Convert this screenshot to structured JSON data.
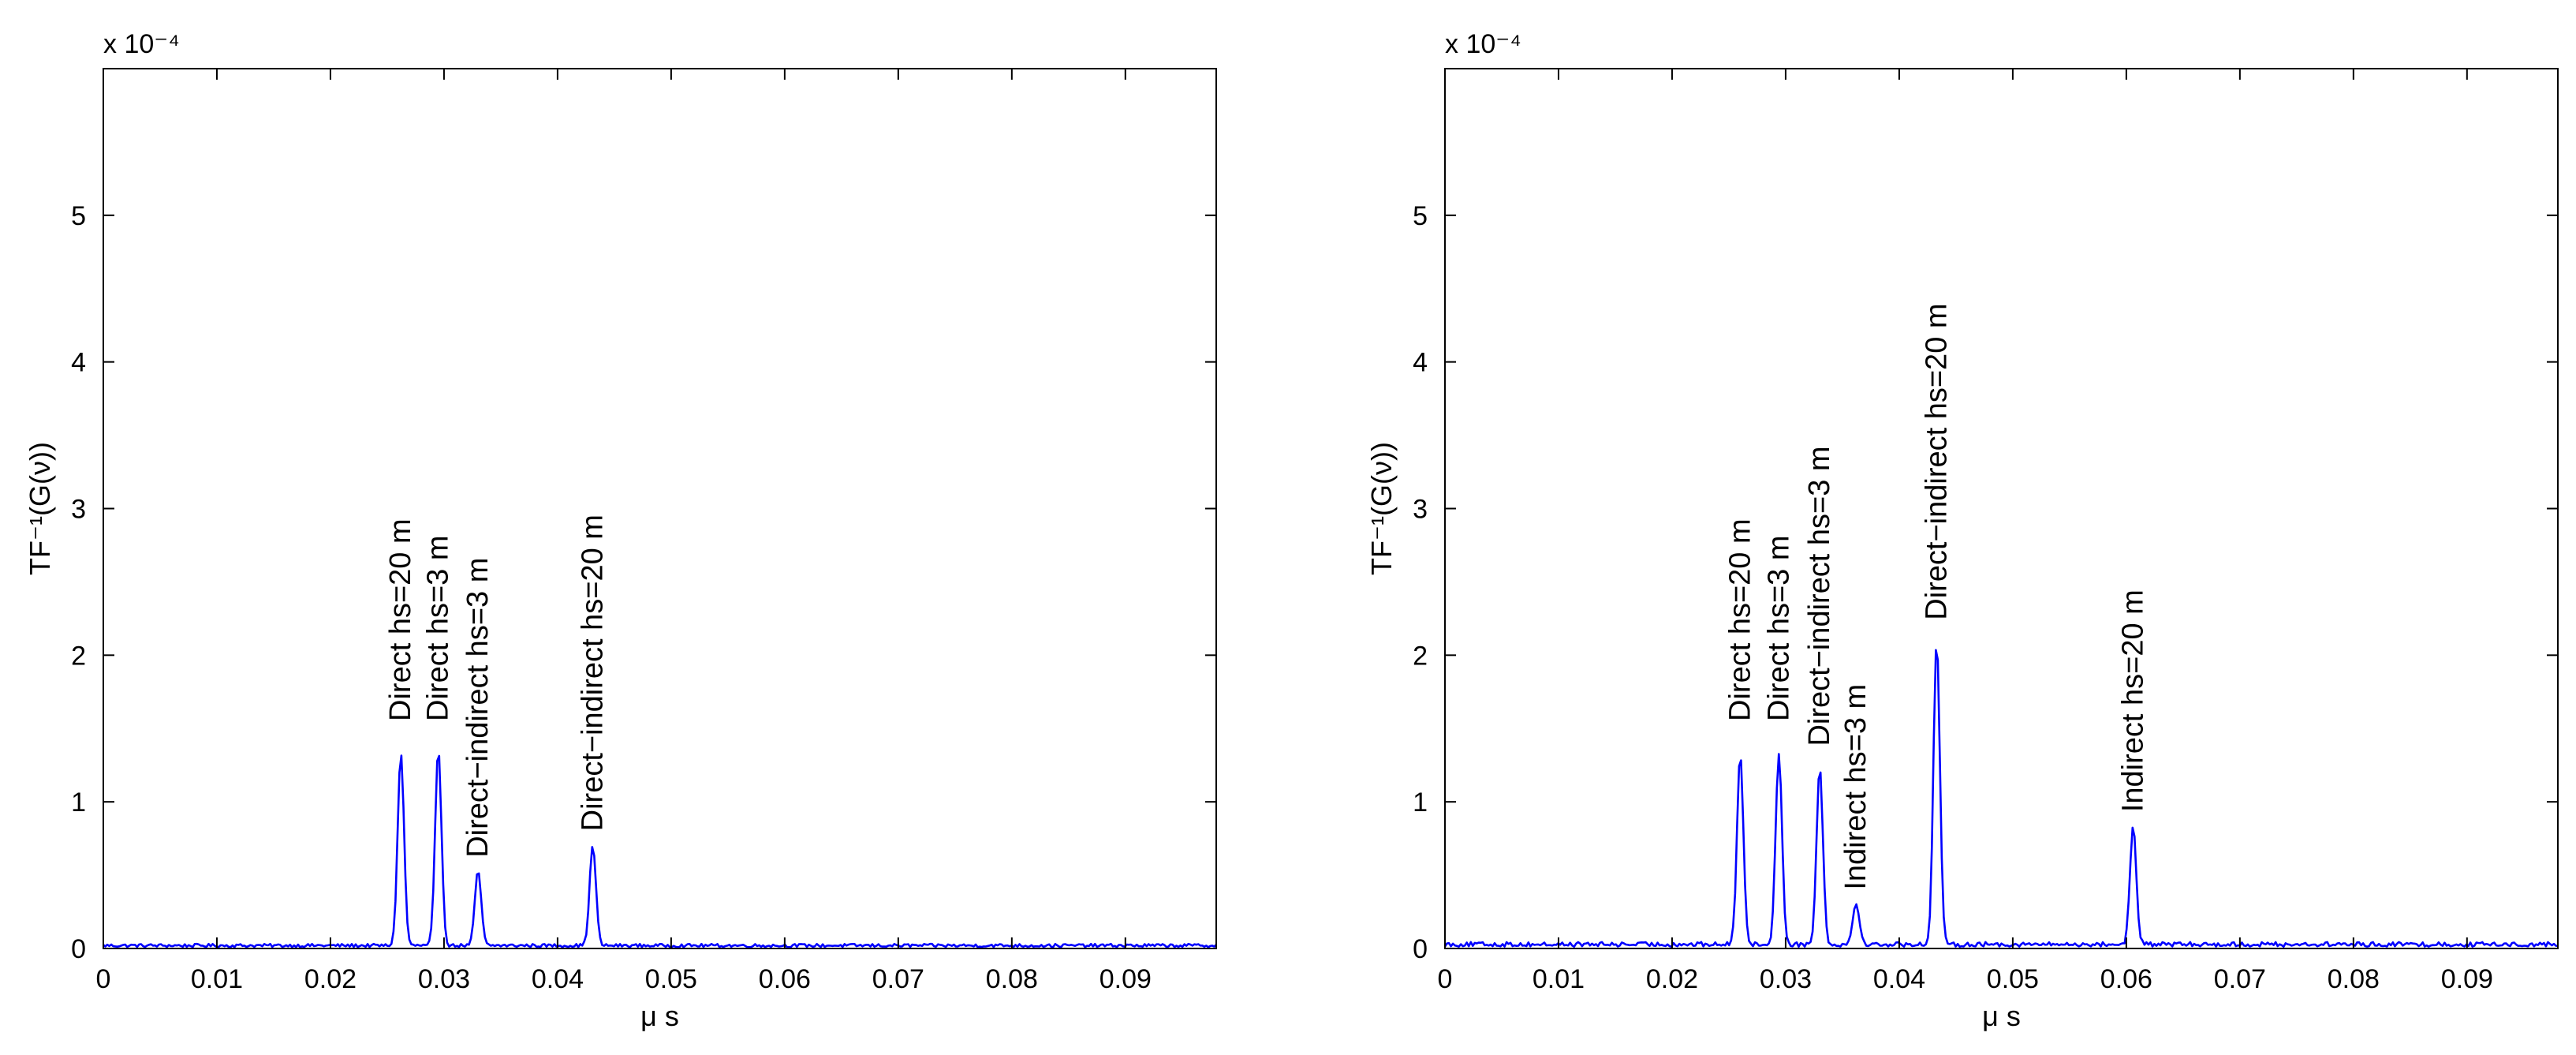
{
  "chart_data": [
    {
      "type": "line",
      "panel": "left",
      "xlabel": "μ s",
      "ylabel": "TF⁻¹(G(ν))",
      "y_exponent_label": "x 10⁻⁴",
      "xlim": [
        0,
        0.098
      ],
      "ylim": [
        0,
        6
      ],
      "x_ticks": [
        0,
        0.01,
        0.02,
        0.03,
        0.04,
        0.05,
        0.06,
        0.07,
        0.08,
        0.09
      ],
      "x_tick_labels": [
        "0",
        "0.01",
        "0.02",
        "0.03",
        "0.04",
        "0.05",
        "0.06",
        "0.07",
        "0.08",
        "0.09"
      ],
      "y_ticks": [
        0,
        1,
        2,
        3,
        4,
        5
      ],
      "y_tick_labels": [
        "0",
        "1",
        "2",
        "3",
        "4",
        "5"
      ],
      "grid": false,
      "line_color": "#0000ff",
      "noise_level": 0.025,
      "peaks": [
        {
          "x": 0.0262,
          "y": 1.31
        },
        {
          "x": 0.0295,
          "y": 1.33
        },
        {
          "x": 0.033,
          "y": 0.51
        },
        {
          "x": 0.0431,
          "y": 0.68
        }
      ],
      "annotations": [
        {
          "text": "Direct hs=20 m",
          "x": 0.0262,
          "y": 1.55
        },
        {
          "text": "Direct hs=3 m",
          "x": 0.0295,
          "y": 1.55
        },
        {
          "text": "Direct−indirect hs=3 m",
          "x": 0.033,
          "y": 0.62
        },
        {
          "text": "Direct−indirect hs=20  m",
          "x": 0.0431,
          "y": 0.8
        }
      ]
    },
    {
      "type": "line",
      "panel": "right",
      "xlabel": "μ s",
      "ylabel": "TF⁻¹(G(ν))",
      "y_exponent_label": "x 10⁻⁴",
      "xlim": [
        0,
        0.098
      ],
      "ylim": [
        0,
        6
      ],
      "x_ticks": [
        0,
        0.01,
        0.02,
        0.03,
        0.04,
        0.05,
        0.06,
        0.07,
        0.08,
        0.09
      ],
      "x_tick_labels": [
        "0",
        "0.01",
        "0.02",
        "0.03",
        "0.04",
        "0.05",
        "0.06",
        "0.07",
        "0.08",
        "0.09"
      ],
      "y_ticks": [
        0,
        1,
        2,
        3,
        4,
        5
      ],
      "y_tick_labels": [
        "0",
        "1",
        "2",
        "3",
        "4",
        "5"
      ],
      "grid": false,
      "line_color": "#0000ff",
      "noise_level": 0.035,
      "peaks": [
        {
          "x": 0.026,
          "y": 1.31
        },
        {
          "x": 0.0294,
          "y": 1.31
        },
        {
          "x": 0.033,
          "y": 1.21
        },
        {
          "x": 0.0362,
          "y": 0.29
        },
        {
          "x": 0.0433,
          "y": 2.08
        },
        {
          "x": 0.0606,
          "y": 0.8
        }
      ],
      "annotations": [
        {
          "text": "Direct hs=20 m",
          "x": 0.026,
          "y": 1.55
        },
        {
          "text": "Direct hs=3 m",
          "x": 0.0294,
          "y": 1.55
        },
        {
          "text": "Direct−indirect hs=3 m",
          "x": 0.033,
          "y": 1.38
        },
        {
          "text": "Indirect hs=3 m",
          "x": 0.0362,
          "y": 0.4
        },
        {
          "text": "Direct−indirect hs=20  m",
          "x": 0.0433,
          "y": 2.24
        },
        {
          "text": "Indirect hs=20 m",
          "x": 0.0606,
          "y": 0.93
        }
      ]
    }
  ]
}
